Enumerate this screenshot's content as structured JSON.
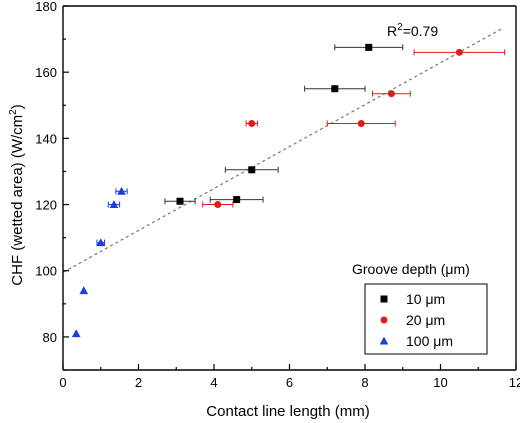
{
  "chart_data": {
    "type": "scatter",
    "xlabel": "Contact line length (mm)",
    "ylabel_main": "CHF (wetted area) (W/cm",
    "ylabel_sup": "2",
    "ylabel_close": ")",
    "xlim": [
      0,
      12
    ],
    "ylim": [
      70,
      180
    ],
    "x_ticks": [
      0,
      2,
      4,
      6,
      8,
      10,
      12
    ],
    "y_ticks": [
      80,
      100,
      120,
      140,
      160,
      180
    ],
    "legend": {
      "title": "Groove depth (μm)",
      "placement": "bottom-right"
    },
    "series": [
      {
        "name": "10 μm",
        "marker": "square",
        "color": "#000000",
        "errorbar_color": "#333333",
        "points": [
          {
            "x": 3.1,
            "y": 121,
            "xerr": 0.4
          },
          {
            "x": 4.6,
            "y": 121.5,
            "xerr": 0.7
          },
          {
            "x": 5.0,
            "y": 130.5,
            "xerr": 0.7
          },
          {
            "x": 7.2,
            "y": 155,
            "xerr": 0.8
          },
          {
            "x": 8.1,
            "y": 167.5,
            "xerr": 0.9
          }
        ]
      },
      {
        "name": "20 μm",
        "marker": "circle",
        "color": "#e31a1c",
        "errorbar_color": "#e31a1c",
        "points": [
          {
            "x": 4.1,
            "y": 120,
            "xerr": 0.4
          },
          {
            "x": 5.0,
            "y": 144.5,
            "xerr": 0.15
          },
          {
            "x": 7.9,
            "y": 144.5,
            "xerr": 0.9
          },
          {
            "x": 8.7,
            "y": 153.5,
            "xerr": 0.5
          },
          {
            "x": 10.5,
            "y": 166,
            "xerr": 1.2
          }
        ]
      },
      {
        "name": "100 μm",
        "marker": "triangle",
        "color": "#1a3fe0",
        "errorbar_color": "#1a3fe0",
        "points": [
          {
            "x": 0.35,
            "y": 81,
            "xerr": 0
          },
          {
            "x": 0.55,
            "y": 94,
            "xerr": 0
          },
          {
            "x": 1.0,
            "y": 108.5,
            "xerr": 0.1
          },
          {
            "x": 1.35,
            "y": 120,
            "xerr": 0.15
          },
          {
            "x": 1.55,
            "y": 124,
            "xerr": 0.15
          }
        ]
      }
    ],
    "fit_line": {
      "style": "dashed",
      "color": "#777777",
      "x": [
        0,
        11.6
      ],
      "y": [
        99.5,
        173
      ]
    },
    "annotations": [
      {
        "text": "R",
        "sup": "2",
        "rest": "=0.79"
      }
    ]
  }
}
